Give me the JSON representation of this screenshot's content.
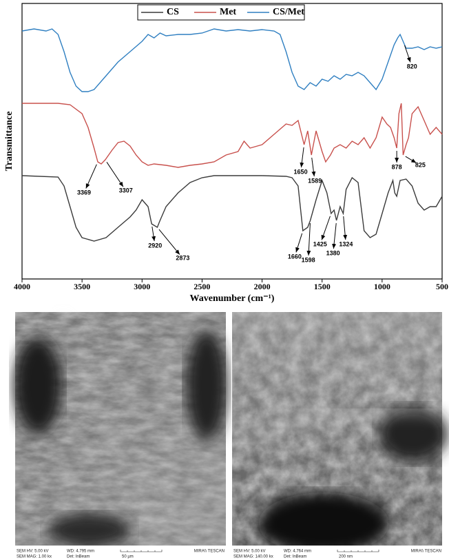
{
  "chart_data": {
    "type": "line",
    "x_label": "Wavenumber (cm⁻¹)",
    "y_label": "Transmittance",
    "xlim": [
      4000,
      500
    ],
    "ylim": [
      0,
      400
    ],
    "xticks": [
      4000,
      3500,
      3000,
      2500,
      2000,
      1500,
      1000,
      500
    ],
    "legend": "top",
    "series": [
      {
        "name": "CS",
        "color": "#3a3a3a",
        "x": [
          4000,
          3700,
          3650,
          3600,
          3550,
          3500,
          3400,
          3300,
          3200,
          3100,
          3050,
          3000,
          2950,
          2920,
          2873,
          2850,
          2800,
          2700,
          2600,
          2500,
          2400,
          2000,
          1800,
          1750,
          1700,
          1660,
          1620,
          1598,
          1550,
          1500,
          1460,
          1425,
          1400,
          1380,
          1350,
          1324,
          1300,
          1250,
          1200,
          1150,
          1100,
          1050,
          1000,
          950,
          910,
          895,
          878,
          850,
          800,
          750,
          700,
          650,
          600,
          550,
          500
        ],
        "values": [
          150,
          148,
          135,
          105,
          75,
          60,
          55,
          60,
          75,
          90,
          100,
          115,
          105,
          80,
          75,
          85,
          105,
          125,
          140,
          147,
          150,
          150,
          149,
          147,
          135,
          70,
          75,
          85,
          115,
          143,
          125,
          95,
          100,
          85,
          105,
          95,
          130,
          147,
          140,
          70,
          60,
          65,
          95,
          125,
          143,
          125,
          120,
          143,
          145,
          135,
          110,
          100,
          105,
          105,
          120
        ],
        "annotations": [
          {
            "label": "2920",
            "x": 2920
          },
          {
            "label": "2873",
            "x": 2873
          },
          {
            "label": "1660",
            "x": 1660
          },
          {
            "label": "1598",
            "x": 1598
          },
          {
            "label": "1425",
            "x": 1425
          },
          {
            "label": "1380",
            "x": 1380
          },
          {
            "label": "1324",
            "x": 1324
          }
        ]
      },
      {
        "name": "Met",
        "color": "#c8504c",
        "x": [
          4000,
          3700,
          3600,
          3500,
          3450,
          3400,
          3369,
          3340,
          3307,
          3250,
          3200,
          3150,
          3100,
          3050,
          3000,
          2950,
          2900,
          2800,
          2700,
          2600,
          2500,
          2400,
          2300,
          2200,
          2150,
          2100,
          2000,
          1900,
          1800,
          1750,
          1700,
          1650,
          1620,
          1589,
          1550,
          1500,
          1470,
          1430,
          1400,
          1350,
          1300,
          1250,
          1200,
          1150,
          1100,
          1050,
          1000,
          960,
          930,
          900,
          878,
          860,
          840,
          825,
          800,
          780,
          750,
          700,
          650,
          600,
          550,
          500
        ],
        "values": [
          255,
          255,
          253,
          240,
          220,
          190,
          170,
          167,
          173,
          187,
          198,
          200,
          193,
          180,
          170,
          165,
          167,
          165,
          162,
          165,
          167,
          170,
          180,
          185,
          200,
          190,
          195,
          210,
          225,
          223,
          230,
          195,
          215,
          180,
          215,
          185,
          170,
          180,
          190,
          195,
          190,
          200,
          195,
          205,
          190,
          205,
          235,
          225,
          220,
          205,
          190,
          240,
          255,
          180,
          195,
          205,
          240,
          250,
          230,
          210,
          220,
          210
        ],
        "annotations": [
          {
            "label": "3369",
            "x": 3369
          },
          {
            "label": "3307",
            "x": 3307
          },
          {
            "label": "1650",
            "x": 1650
          },
          {
            "label": "1589",
            "x": 1589
          },
          {
            "label": "878",
            "x": 878
          },
          {
            "label": "825",
            "x": 825
          }
        ]
      },
      {
        "name": "CS/Met",
        "color": "#2f7fc1",
        "x": [
          4000,
          3900,
          3800,
          3750,
          3700,
          3650,
          3600,
          3550,
          3500,
          3450,
          3400,
          3300,
          3200,
          3100,
          3000,
          2950,
          2900,
          2850,
          2800,
          2700,
          2600,
          2500,
          2400,
          2300,
          2200,
          2100,
          2000,
          1900,
          1850,
          1800,
          1750,
          1700,
          1650,
          1600,
          1550,
          1500,
          1450,
          1400,
          1350,
          1300,
          1250,
          1200,
          1150,
          1100,
          1050,
          1000,
          950,
          900,
          870,
          850,
          820,
          800,
          750,
          700,
          650,
          600,
          550,
          500
        ],
        "values": [
          360,
          363,
          360,
          363,
          355,
          330,
          300,
          280,
          272,
          272,
          275,
          295,
          315,
          330,
          345,
          355,
          350,
          357,
          353,
          355,
          355,
          357,
          363,
          360,
          362,
          360,
          362,
          360,
          355,
          330,
          300,
          280,
          275,
          285,
          280,
          290,
          287,
          295,
          290,
          297,
          295,
          300,
          295,
          285,
          275,
          290,
          315,
          340,
          350,
          355,
          343,
          335,
          335,
          337,
          333,
          337,
          335,
          337
        ],
        "annotations": [
          {
            "label": "820",
            "x": 820
          }
        ]
      }
    ]
  },
  "sem_images": [
    {
      "hv": "SEM HV: 5.00 kV",
      "wd": "WD: 4.795 mm",
      "brand": "MIRA\\\\ TESCAN",
      "mag": "SEM MAG: 1.00 kx",
      "det": "Det: InBeam",
      "scale": "50 µm"
    },
    {
      "hv": "SEM HV: 5.00 kV",
      "wd": "WD: 4.764 mm",
      "brand": "MIRA\\\\ TESCAN",
      "mag": "SEM MAG: 140.00 kx",
      "det": "Det: InBeam",
      "scale": "200 nm"
    }
  ]
}
